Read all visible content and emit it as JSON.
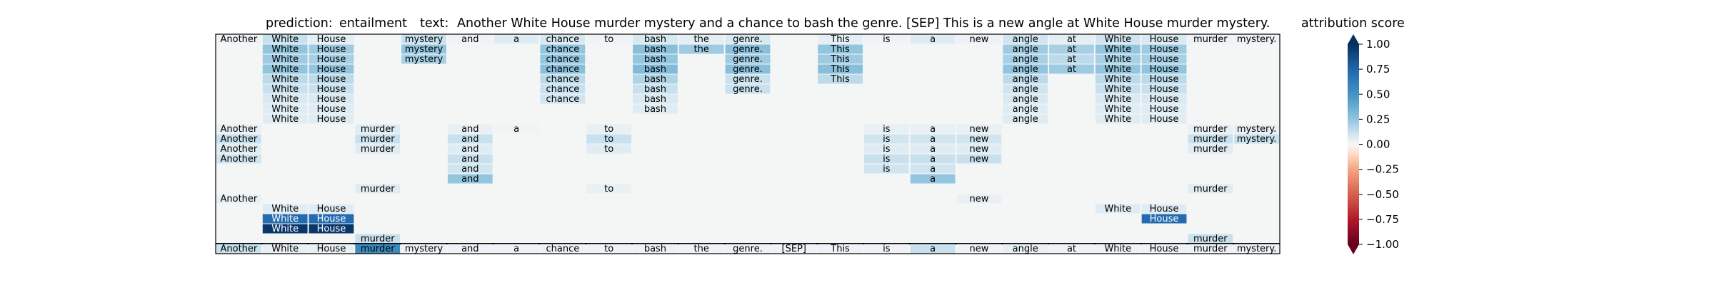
{
  "header": {
    "prediction_label": "prediction:",
    "prediction_value": "entailment",
    "text_label": "text:",
    "text_value": "Another White House murder mystery and a chance to bash the genre. [SEP] This is a new angle at White House murder mystery."
  },
  "chart_data": {
    "type": "heatmap",
    "colorbar_title": "attribution score",
    "colorbar_ticks": [
      "1.00",
      "0.75",
      "0.50",
      "0.25",
      "0.00",
      "−0.25",
      "−0.50",
      "−0.75",
      "−1.00"
    ],
    "colorbar_range": [
      -1.0,
      1.0
    ],
    "colormap": "RdBu",
    "tokens": [
      "Another",
      "White",
      "House",
      "murder",
      "mystery",
      "and",
      "a",
      "chance",
      "to",
      "bash",
      "the",
      "genre.",
      "[SEP]",
      "This",
      "is",
      "a",
      "new",
      "angle",
      "at",
      "White",
      "House",
      "murder",
      "mystery."
    ],
    "rows": [
      [
        [
          0,
          0.02
        ],
        [
          1,
          0.12
        ],
        [
          2,
          0.05
        ],
        [
          4,
          0.12
        ],
        [
          5,
          0.02
        ],
        [
          6,
          0.06
        ],
        [
          7,
          0.08
        ],
        [
          8,
          0.02
        ],
        [
          9,
          0.08
        ],
        [
          10,
          0.05
        ],
        [
          11,
          0.08
        ],
        [
          13,
          0.05
        ],
        [
          14,
          0.02
        ],
        [
          15,
          0.06
        ],
        [
          16,
          0.03
        ],
        [
          17,
          0.1
        ],
        [
          18,
          0.05
        ],
        [
          19,
          0.1
        ],
        [
          20,
          0.08
        ],
        [
          21,
          0.03
        ],
        [
          22,
          0.03
        ]
      ],
      [
        [
          1,
          0.25
        ],
        [
          2,
          0.22
        ],
        [
          4,
          0.25
        ],
        [
          7,
          0.25
        ],
        [
          9,
          0.28
        ],
        [
          10,
          0.22
        ],
        [
          11,
          0.28
        ],
        [
          13,
          0.25
        ],
        [
          17,
          0.22
        ],
        [
          18,
          0.2
        ],
        [
          19,
          0.25
        ],
        [
          20,
          0.22
        ]
      ],
      [
        [
          1,
          0.22
        ],
        [
          2,
          0.2
        ],
        [
          4,
          0.2
        ],
        [
          7,
          0.25
        ],
        [
          9,
          0.25
        ],
        [
          11,
          0.22
        ],
        [
          13,
          0.22
        ],
        [
          17,
          0.2
        ],
        [
          18,
          0.15
        ],
        [
          19,
          0.2
        ],
        [
          20,
          0.2
        ]
      ],
      [
        [
          1,
          0.25
        ],
        [
          2,
          0.25
        ],
        [
          7,
          0.28
        ],
        [
          9,
          0.3
        ],
        [
          11,
          0.28
        ],
        [
          13,
          0.28
        ],
        [
          17,
          0.25
        ],
        [
          18,
          0.22
        ],
        [
          19,
          0.25
        ],
        [
          20,
          0.25
        ]
      ],
      [
        [
          1,
          0.15
        ],
        [
          2,
          0.15
        ],
        [
          7,
          0.15
        ],
        [
          9,
          0.18
        ],
        [
          11,
          0.12
        ],
        [
          13,
          0.15
        ],
        [
          17,
          0.15
        ],
        [
          19,
          0.15
        ],
        [
          20,
          0.15
        ]
      ],
      [
        [
          1,
          0.12
        ],
        [
          2,
          0.12
        ],
        [
          7,
          0.12
        ],
        [
          9,
          0.12
        ],
        [
          11,
          0.12
        ],
        [
          17,
          0.1
        ],
        [
          19,
          0.12
        ],
        [
          20,
          0.12
        ]
      ],
      [
        [
          1,
          0.08
        ],
        [
          2,
          0.08
        ],
        [
          7,
          0.1
        ],
        [
          9,
          0.08
        ],
        [
          17,
          0.08
        ],
        [
          19,
          0.08
        ],
        [
          20,
          0.08
        ]
      ],
      [
        [
          1,
          0.06
        ],
        [
          2,
          0.06
        ],
        [
          9,
          0.06
        ],
        [
          17,
          0.06
        ],
        [
          19,
          0.06
        ],
        [
          20,
          0.06
        ]
      ],
      [
        [
          1,
          0.06
        ],
        [
          2,
          0.06
        ],
        [
          17,
          0.06
        ],
        [
          19,
          0.06
        ],
        [
          20,
          0.06
        ]
      ],
      [
        [
          0,
          0.04
        ],
        [
          3,
          0.06
        ],
        [
          5,
          0.04
        ],
        [
          6,
          0.02
        ],
        [
          8,
          0.04
        ],
        [
          14,
          0.04
        ],
        [
          15,
          0.04
        ],
        [
          16,
          0.04
        ],
        [
          21,
          0.04
        ],
        [
          22,
          0.04
        ]
      ],
      [
        [
          0,
          0.12
        ],
        [
          3,
          0.12
        ],
        [
          5,
          0.12
        ],
        [
          8,
          0.12
        ],
        [
          14,
          0.1
        ],
        [
          15,
          0.1
        ],
        [
          16,
          0.1
        ],
        [
          21,
          0.12
        ],
        [
          22,
          0.12
        ]
      ],
      [
        [
          0,
          0.06
        ],
        [
          3,
          0.06
        ],
        [
          5,
          0.06
        ],
        [
          8,
          0.06
        ],
        [
          14,
          0.06
        ],
        [
          15,
          0.06
        ],
        [
          16,
          0.06
        ],
        [
          21,
          0.06
        ]
      ],
      [
        [
          0,
          0.1
        ],
        [
          5,
          0.12
        ],
        [
          14,
          0.12
        ],
        [
          15,
          0.12
        ],
        [
          16,
          0.12
        ]
      ],
      [
        [
          5,
          0.1
        ],
        [
          14,
          0.1
        ],
        [
          15,
          0.1
        ]
      ],
      [
        [
          5,
          0.25
        ],
        [
          15,
          0.25
        ]
      ],
      [
        [
          3,
          0.06
        ],
        [
          8,
          0.04
        ],
        [
          21,
          0.06
        ]
      ],
      [
        [
          0,
          0.04
        ],
        [
          16,
          0.04
        ]
      ],
      [
        [
          1,
          0.06
        ],
        [
          2,
          0.06
        ],
        [
          19,
          0.06
        ],
        [
          20,
          0.06
        ]
      ],
      [
        [
          1,
          0.72
        ],
        [
          2,
          0.72
        ],
        [
          20,
          0.72
        ]
      ],
      [
        [
          1,
          0.97
        ],
        [
          2,
          0.97
        ]
      ],
      [
        [
          3,
          0.12
        ],
        [
          21,
          0.12
        ]
      ]
    ],
    "input_row": [
      [
        0,
        0.12
      ],
      [
        1,
        0.04
      ],
      [
        2,
        0.04
      ],
      [
        3,
        0.55
      ],
      [
        4,
        0.03
      ],
      [
        5,
        0.03
      ],
      [
        6,
        0.02
      ],
      [
        7,
        0.03
      ],
      [
        8,
        0.02
      ],
      [
        9,
        0.03
      ],
      [
        10,
        0.02
      ],
      [
        11,
        0.03
      ],
      [
        12,
        0.02
      ],
      [
        13,
        0.03
      ],
      [
        14,
        0.02
      ],
      [
        15,
        0.12
      ],
      [
        16,
        0.02
      ],
      [
        17,
        0.04
      ],
      [
        18,
        0.02
      ],
      [
        19,
        0.03
      ],
      [
        20,
        0.03
      ],
      [
        21,
        0.03
      ],
      [
        22,
        0.03
      ]
    ]
  }
}
